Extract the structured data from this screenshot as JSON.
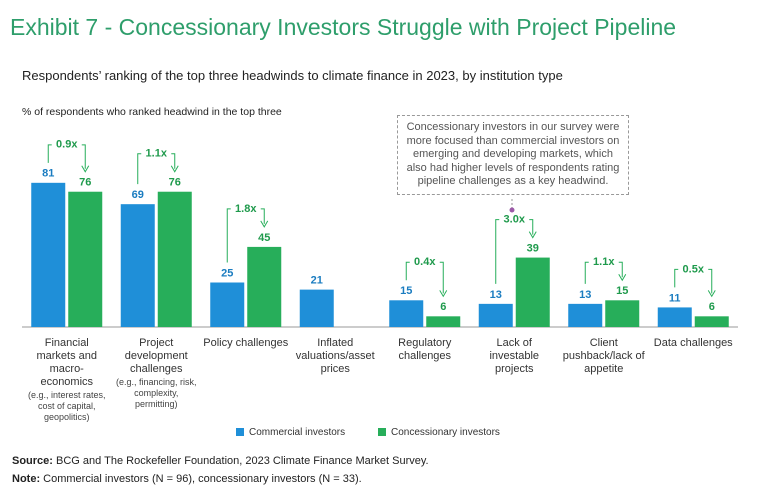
{
  "chart_data": {
    "type": "bar",
    "title": "Exhibit 7 - Concessionary Investors Struggle with Project Pipeline",
    "subtitle": "Respondents’ ranking of the top three headwinds to climate finance in 2023, by institution type",
    "y_label": "% of respondents who ranked headwind in the top three",
    "categories": [
      "Financial markets and macro-economics",
      "Project development challenges",
      "Policy challenges",
      "Inflated valuations/asset prices",
      "Regulatory challenges",
      "Lack of investable projects",
      "Client pushback/lack of appetite",
      "Data challenges"
    ],
    "category_notes": [
      "(e.g., interest rates, cost of capital, geopolitics)",
      "(e.g., financing, risk, complexity, permitting)",
      null,
      null,
      null,
      null,
      null,
      null
    ],
    "series": [
      {
        "name": "Commercial investors",
        "color": "#1f8fd8",
        "values": [
          81,
          69,
          25,
          21,
          15,
          13,
          13,
          11
        ]
      },
      {
        "name": "Concessionary investors",
        "color": "#27ae5a",
        "values": [
          76,
          76,
          45,
          null,
          6,
          39,
          15,
          6
        ]
      }
    ],
    "ratio_labels": [
      "0.9x",
      "1.1x",
      "1.8x",
      null,
      "0.4x",
      "3.0x",
      "1.1x",
      "0.5x"
    ],
    "ylim": [
      0,
      100
    ],
    "annotation": "Concessionary investors in our survey were more focused than commercial investors on emerging and developing markets, which also had higher levels of respondents rating pipeline challenges as a key headwind.",
    "source_label": "Source:",
    "source": "BCG and The Rockefeller Foundation, 2023 Climate Finance Market Survey.",
    "note_label": "Note:",
    "note": "Commercial investors (N = 96), concessionary investors (N = 33)."
  }
}
